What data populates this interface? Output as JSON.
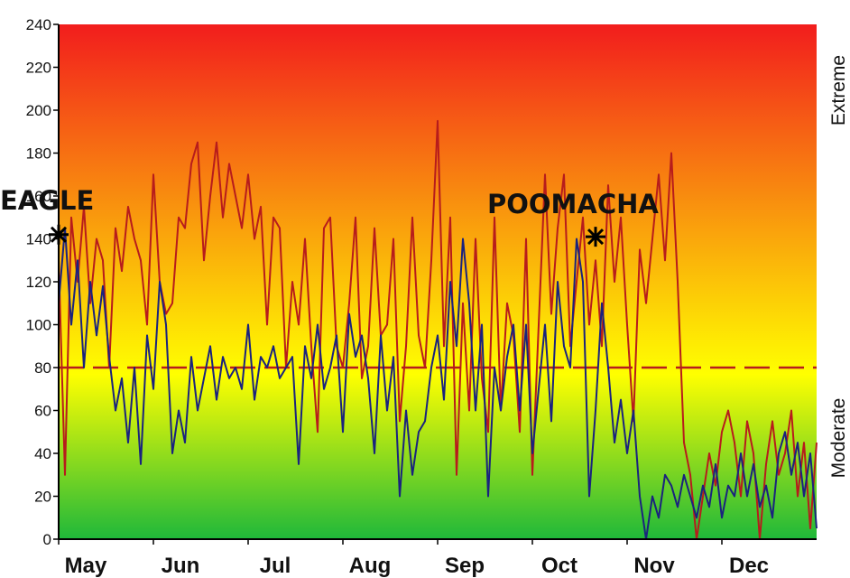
{
  "chart_data": {
    "type": "line",
    "ylim": [
      0,
      240
    ],
    "yticks": [
      0,
      20,
      40,
      60,
      80,
      100,
      120,
      140,
      160,
      180,
      200,
      220,
      240
    ],
    "x_month_labels": [
      "May",
      "Jun",
      "Jul",
      "Aug",
      "Sep",
      "Oct",
      "Nov",
      "Dec"
    ],
    "xlim_days": [
      0,
      240
    ],
    "zones": {
      "upper": "Extreme",
      "lower": "Moderate"
    },
    "threshold": 80,
    "colors": {
      "blue_series": "#1a237e",
      "red_series": "#b71c1c",
      "threshold": "#b71c1c",
      "background_top": "#f21d1d",
      "background_mid": "#ffff00",
      "background_bottom": "#1fb83a"
    },
    "annotations": [
      {
        "text": "EAGLE",
        "x": 0,
        "y": 142
      },
      {
        "text": "POOMACHA",
        "x": 170,
        "y": 141
      }
    ],
    "series": [
      {
        "x": [
          0,
          2,
          4,
          6,
          8,
          10,
          12,
          14,
          16,
          18,
          20,
          22,
          24,
          26,
          28,
          30,
          32,
          34,
          36,
          38,
          40,
          42,
          44,
          46,
          48,
          50,
          52,
          54,
          56,
          58,
          60,
          62,
          64,
          66,
          68,
          70,
          72,
          74,
          76,
          78,
          80,
          82,
          84,
          86,
          88,
          90,
          92,
          94,
          96,
          98,
          100,
          102,
          104,
          106,
          108,
          110,
          112,
          114,
          116,
          118,
          120,
          122,
          124,
          126,
          128,
          130,
          132,
          134,
          136,
          138,
          140,
          142,
          144,
          146,
          148,
          150,
          152,
          154,
          156,
          158,
          160,
          162,
          164,
          166,
          168,
          170,
          172,
          174,
          176,
          178,
          180,
          182,
          184,
          186,
          188,
          190,
          192,
          194,
          196,
          198,
          200,
          202,
          204,
          206,
          208,
          210,
          212,
          214,
          216,
          218,
          220,
          222,
          224,
          226,
          228,
          230,
          232,
          234,
          236,
          238,
          240
        ],
        "values": [
          110,
          145,
          100,
          130,
          80,
          120,
          95,
          118,
          85,
          60,
          75,
          45,
          80,
          35,
          95,
          70,
          120,
          100,
          40,
          60,
          45,
          85,
          60,
          75,
          90,
          65,
          85,
          75,
          80,
          70,
          100,
          65,
          85,
          80,
          90,
          75,
          80,
          85,
          35,
          90,
          75,
          100,
          70,
          80,
          95,
          50,
          105,
          85,
          95,
          75,
          40,
          95,
          60,
          85,
          20,
          60,
          30,
          50,
          55,
          80,
          95,
          65,
          120,
          90,
          140,
          110,
          60,
          100,
          20,
          80,
          60,
          85,
          100,
          60,
          100,
          40,
          70,
          100,
          55,
          120,
          90,
          80,
          140,
          120,
          20,
          60,
          110,
          80,
          45,
          65,
          40,
          60,
          20,
          0,
          20,
          10,
          30,
          25,
          15,
          30,
          20,
          10,
          25,
          15,
          35,
          10,
          25,
          20,
          40,
          20,
          35,
          15,
          25,
          10,
          40,
          50,
          30,
          45,
          20,
          40,
          5
        ]
      },
      {
        "x": [
          0,
          2,
          4,
          6,
          8,
          10,
          12,
          14,
          16,
          18,
          20,
          22,
          24,
          26,
          28,
          30,
          32,
          34,
          36,
          38,
          40,
          42,
          44,
          46,
          48,
          50,
          52,
          54,
          56,
          58,
          60,
          62,
          64,
          66,
          68,
          70,
          72,
          74,
          76,
          78,
          80,
          82,
          84,
          86,
          88,
          90,
          92,
          94,
          96,
          98,
          100,
          102,
          104,
          106,
          108,
          110,
          112,
          114,
          116,
          118,
          120,
          122,
          124,
          126,
          128,
          130,
          132,
          134,
          136,
          138,
          140,
          142,
          144,
          146,
          148,
          150,
          152,
          154,
          156,
          158,
          160,
          162,
          164,
          166,
          168,
          170,
          172,
          174,
          176,
          178,
          180,
          182,
          184,
          186,
          188,
          190,
          192,
          194,
          196,
          198,
          200,
          202,
          204,
          206,
          208,
          210,
          212,
          214,
          216,
          218,
          220,
          222,
          224,
          226,
          228,
          230,
          232,
          234,
          236,
          238,
          240
        ],
        "values": [
          130,
          30,
          150,
          120,
          155,
          110,
          140,
          130,
          80,
          145,
          125,
          155,
          140,
          130,
          100,
          170,
          120,
          105,
          110,
          150,
          145,
          175,
          185,
          130,
          160,
          185,
          150,
          175,
          160,
          145,
          170,
          140,
          155,
          100,
          150,
          145,
          80,
          120,
          100,
          140,
          90,
          50,
          145,
          150,
          90,
          80,
          110,
          150,
          75,
          90,
          145,
          95,
          100,
          140,
          55,
          90,
          150,
          95,
          80,
          130,
          195,
          90,
          150,
          30,
          110,
          60,
          140,
          75,
          50,
          150,
          60,
          110,
          95,
          50,
          140,
          30,
          100,
          170,
          105,
          145,
          170,
          90,
          120,
          150,
          100,
          130,
          90,
          165,
          120,
          150,
          100,
          55,
          135,
          110,
          140,
          170,
          130,
          180,
          120,
          45,
          30,
          0,
          20,
          40,
          25,
          50,
          60,
          45,
          20,
          55,
          40,
          0,
          35,
          55,
          30,
          40,
          60,
          20,
          45,
          5,
          45
        ]
      }
    ]
  }
}
